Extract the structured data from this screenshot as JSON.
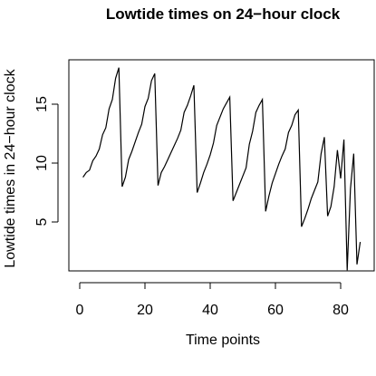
{
  "chart_data": {
    "type": "line",
    "title": "Lowtide times on 24−hour clock",
    "xlabel": "Time points",
    "ylabel": "Lowtide times in 24−hour clock",
    "xlim": [
      0,
      86
    ],
    "ylim": [
      0.9,
      18.5
    ],
    "x_ticks": [
      0,
      20,
      40,
      60,
      80
    ],
    "x_tick_labels": [
      "0",
      "20",
      "40",
      "60",
      "80"
    ],
    "y_ticks": [
      5,
      10,
      15
    ],
    "y_tick_labels": [
      "5",
      "10",
      "15"
    ],
    "grid": false,
    "legend": "none",
    "series": [
      {
        "x": [
          1,
          2,
          3,
          4,
          5,
          6,
          7,
          8,
          9,
          10,
          11,
          12,
          13,
          14,
          15,
          16,
          17,
          18,
          19,
          20,
          21,
          22,
          23,
          24,
          25,
          26,
          27,
          28,
          29,
          30,
          31,
          32,
          33,
          34,
          35,
          36,
          37,
          38,
          39,
          40,
          41,
          42,
          43,
          44,
          45,
          46,
          47,
          48,
          49,
          50,
          51,
          52,
          53,
          54,
          55,
          56,
          57,
          58,
          59,
          60,
          61,
          62,
          63,
          64,
          65,
          66,
          67,
          68,
          69,
          70,
          71,
          72,
          73,
          74,
          75,
          76,
          77,
          78,
          79,
          80,
          81,
          82,
          83,
          84,
          85,
          86
        ],
        "values": [
          8.8,
          9.2,
          9.4,
          10.2,
          10.6,
          11.2,
          12.4,
          13.0,
          14.6,
          15.4,
          17.2,
          18.1,
          8.0,
          8.8,
          10.3,
          11.0,
          11.8,
          12.6,
          13.3,
          14.8,
          15.5,
          17.0,
          17.6,
          8.1,
          9.2,
          9.7,
          10.3,
          10.9,
          11.5,
          12.1,
          12.8,
          14.3,
          14.9,
          15.7,
          16.6,
          7.5,
          8.3,
          9.2,
          9.9,
          10.7,
          11.7,
          13.2,
          13.9,
          14.6,
          15.1,
          15.6,
          6.8,
          7.5,
          8.2,
          8.9,
          9.6,
          11.6,
          12.7,
          14.3,
          14.9,
          15.4,
          5.9,
          7.2,
          8.3,
          9.1,
          9.9,
          10.6,
          11.2,
          12.6,
          13.2,
          14.1,
          14.5,
          4.6,
          5.3,
          6.1,
          7.0,
          7.7,
          8.4,
          10.8,
          12.2,
          5.5,
          6.3,
          8.0,
          11.1,
          8.7,
          12.0,
          0.9,
          7.8,
          10.8,
          1.4,
          3.3
        ]
      }
    ]
  }
}
